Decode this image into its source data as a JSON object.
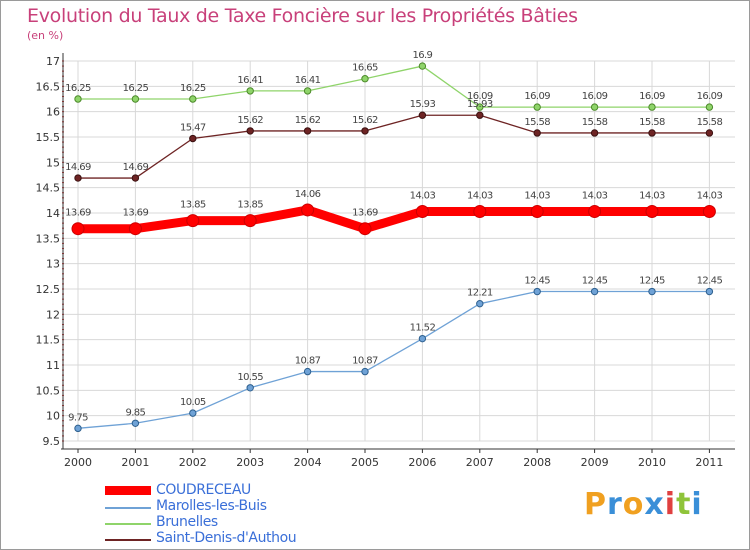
{
  "chart_data": {
    "type": "line",
    "title": "Evolution du Taux de Taxe Foncière sur les Propriétés Bâties",
    "subtitle": "(en %)",
    "x": [
      "2000",
      "2001",
      "2002",
      "2003",
      "2004",
      "2005",
      "2006",
      "2007",
      "2008",
      "2009",
      "2010",
      "2011"
    ],
    "ylim": [
      9.5,
      17
    ],
    "yticks": [
      "9.5",
      "10",
      "10.5",
      "11",
      "11.5",
      "12",
      "12.5",
      "13",
      "13.5",
      "14",
      "14.5",
      "15",
      "15.5",
      "16",
      "16.5",
      "17"
    ],
    "grid": true,
    "legend_position": "bottom-left",
    "series": [
      {
        "name": "COUDRECEAU",
        "color": "#ff0000",
        "values": [
          13.69,
          13.69,
          13.85,
          13.85,
          14.06,
          13.69,
          14.03,
          14.03,
          14.03,
          14.03,
          14.03,
          14.03
        ]
      },
      {
        "name": "Marolles-les-Buis",
        "color": "#6fa2d6",
        "values": [
          9.75,
          9.85,
          10.05,
          10.55,
          10.87,
          10.87,
          11.52,
          12.21,
          12.45,
          12.45,
          12.45,
          12.45
        ]
      },
      {
        "name": "Brunelles",
        "color": "#8fd46a",
        "values": [
          16.25,
          16.25,
          16.25,
          16.41,
          16.41,
          16.65,
          16.9,
          16.09,
          16.09,
          16.09,
          16.09,
          16.09
        ]
      },
      {
        "name": "Saint-Denis-d'Authou",
        "color": "#6e2424",
        "values": [
          14.69,
          14.69,
          15.47,
          15.62,
          15.62,
          15.62,
          15.93,
          15.93,
          15.58,
          15.58,
          15.58,
          15.58
        ]
      }
    ],
    "data_labels": [
      [
        "13.69",
        "13.69",
        "13.85",
        "13.85",
        "14.06",
        "13.69",
        "14.03",
        "14.03",
        "14.03",
        "14.03",
        "14.03",
        "14.03"
      ],
      [
        "9.75",
        "9.85",
        "10.05",
        "10.55",
        "10.87",
        "10.87",
        "11.52",
        "12.21",
        "12.45",
        "12.45",
        "12.45",
        "12.45"
      ],
      [
        "16.25",
        "16.25",
        "16.25",
        "16.41",
        "16.41",
        "16.65",
        "16.9",
        "16.09",
        "16.09",
        "16.09",
        "16.09",
        "16.09"
      ],
      [
        "14.69",
        "14.69",
        "15.47",
        "15.62",
        "15.62",
        "15.62",
        "15.93",
        "15.93",
        "15.58",
        "15.58",
        "15.58",
        "15.58"
      ]
    ]
  },
  "logo": {
    "letters": [
      "P",
      "r",
      "o",
      "x",
      "i",
      "t",
      "i"
    ],
    "colors": [
      "#f0a020",
      "#3a8fd8",
      "#f0a020",
      "#3a8fd8",
      "#e04040",
      "#8fc43a",
      "#3a8fd8"
    ]
  }
}
